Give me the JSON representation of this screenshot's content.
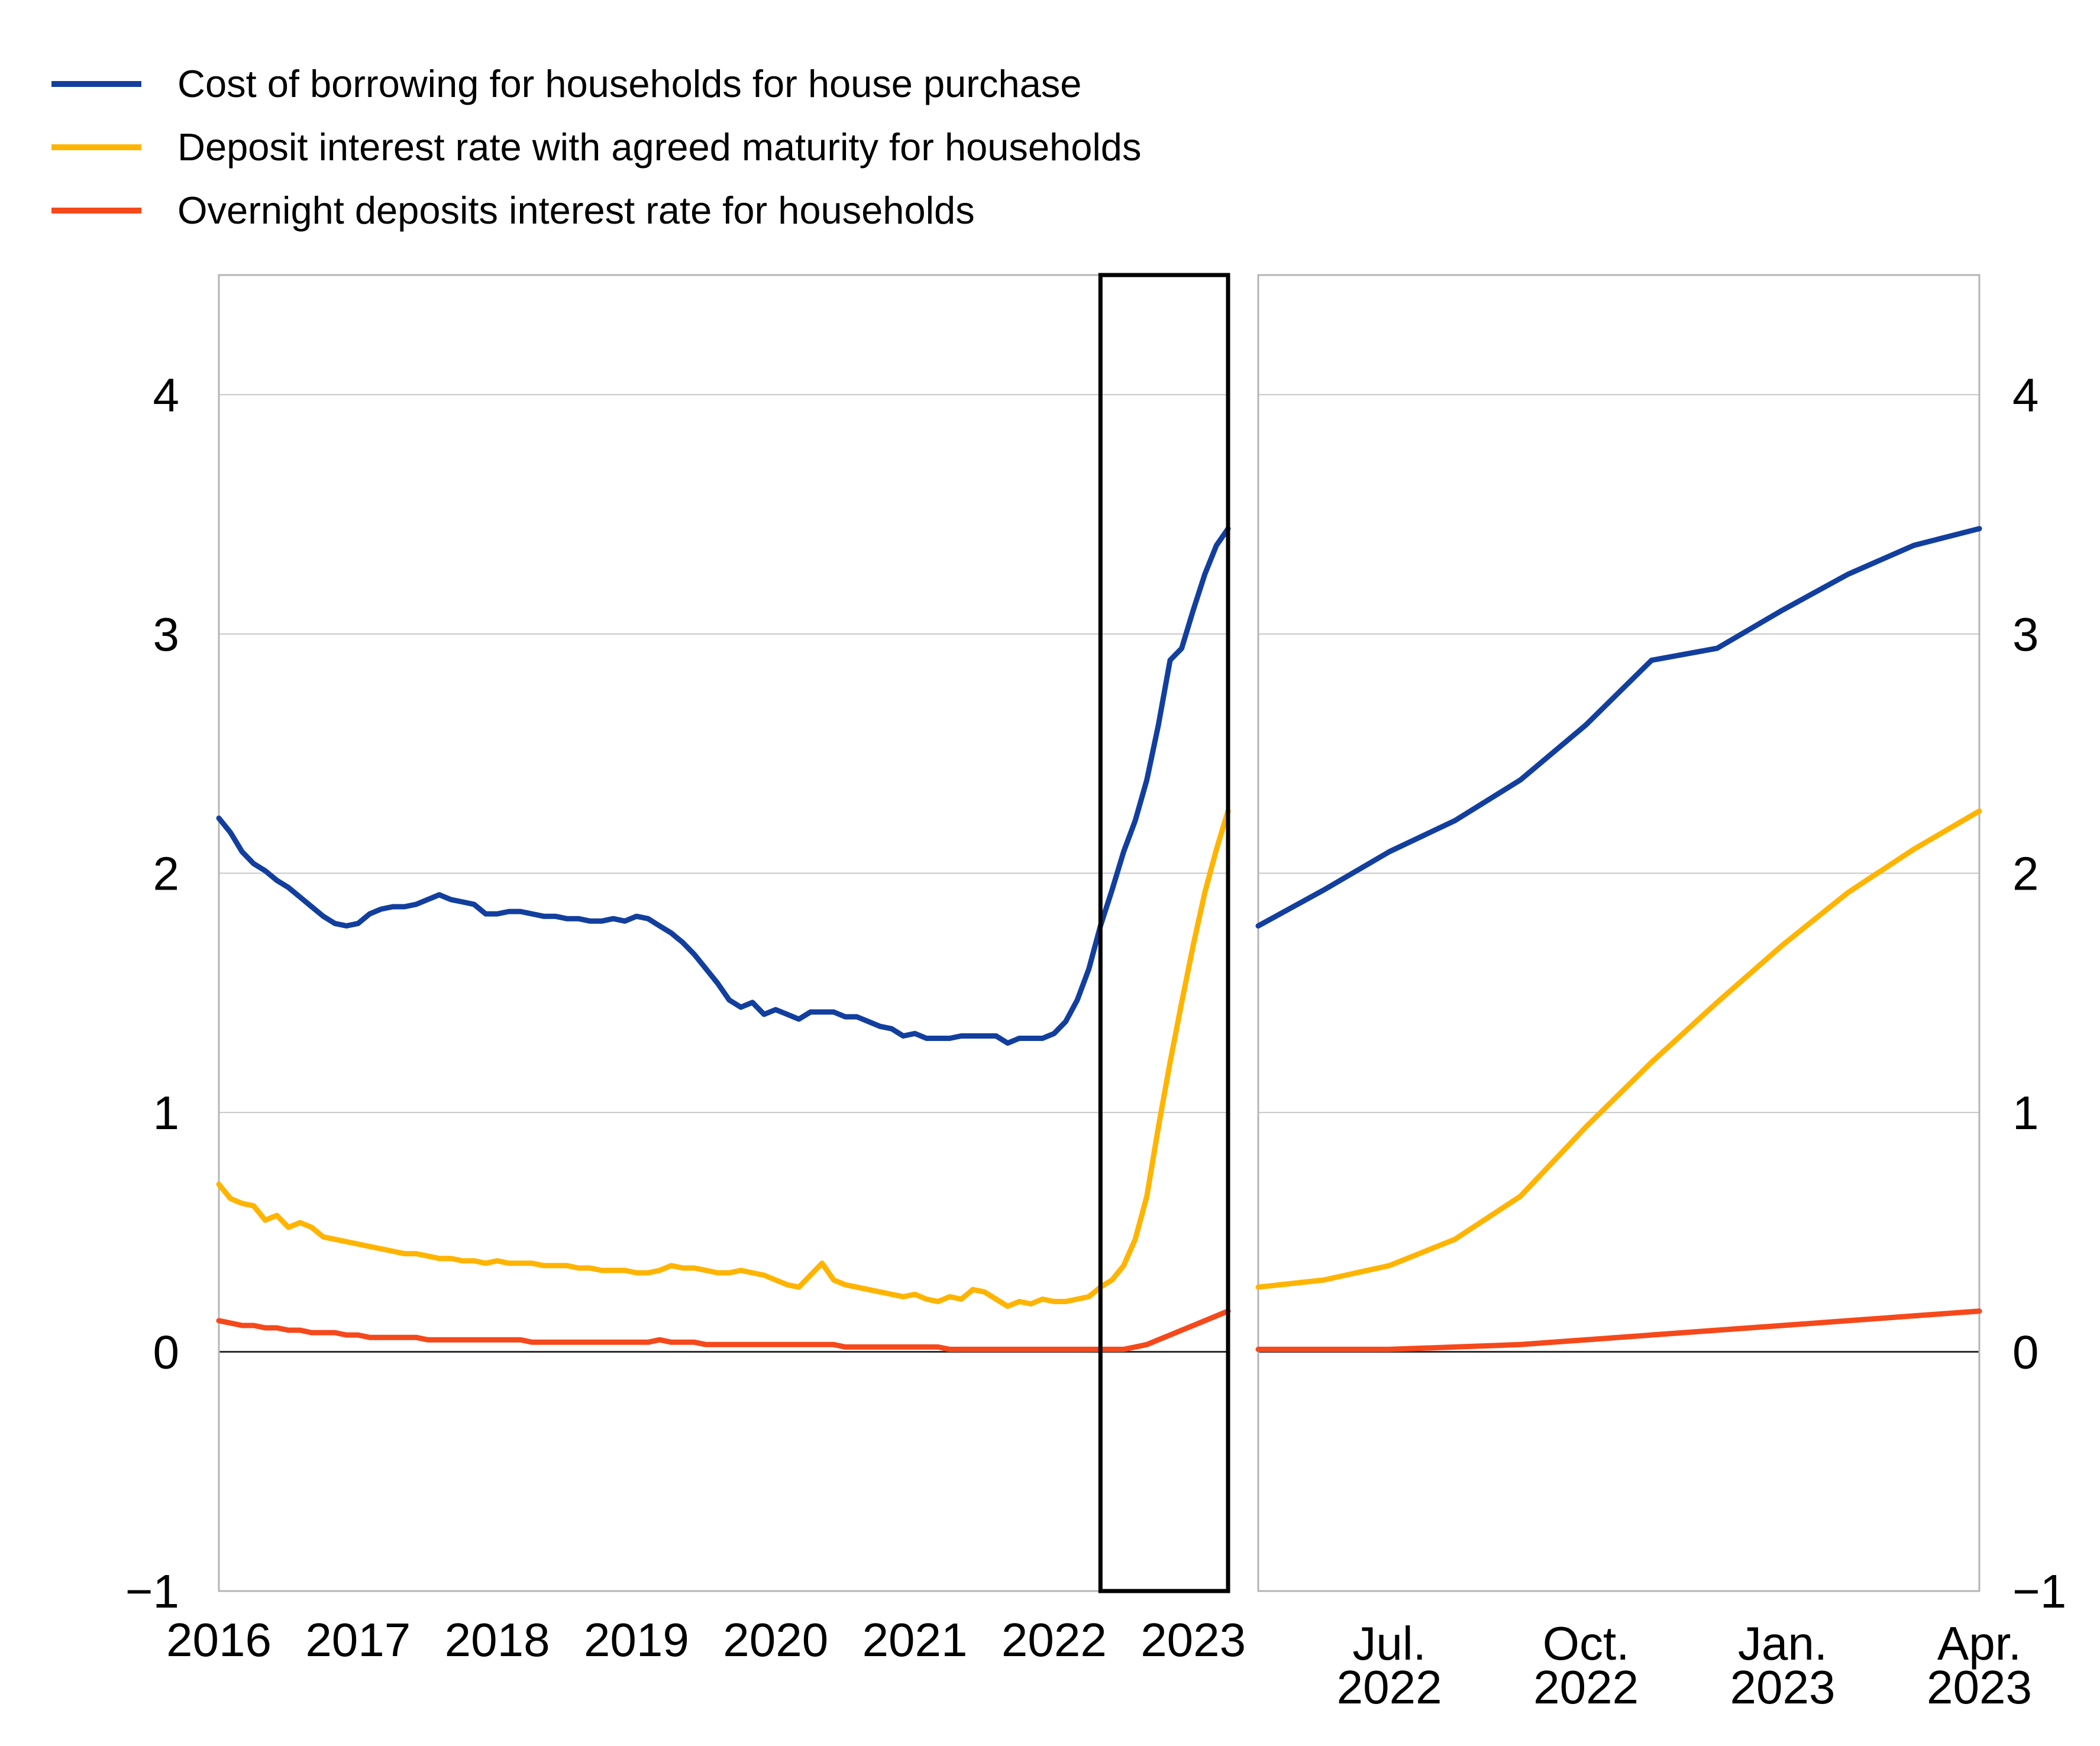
{
  "legend": {
    "items": [
      {
        "label": "Cost of borrowing for households for house purchase",
        "color": "#123F9E"
      },
      {
        "label": "Deposit interest rate with agreed maturity for households",
        "color": "#FFB400"
      },
      {
        "label": "Overnight deposits interest rate for households",
        "color": "#F5491B"
      }
    ]
  },
  "chart_data": {
    "type": "line",
    "title": "",
    "x_frequency": "monthly",
    "x_start": "2016-01",
    "x_end": "2023-04",
    "ylim": [
      -1,
      4.5
    ],
    "y_ticks_values": [
      4,
      3,
      2,
      1,
      0,
      -1
    ],
    "y_ticks_labels": [
      "4",
      "3",
      "2",
      "1",
      "0",
      "−1"
    ],
    "grid": "horizontal",
    "legend_position": "top-left",
    "panels": {
      "left": {
        "x_tick_labels": [
          "2016",
          "2017",
          "2018",
          "2019",
          "2020",
          "2021",
          "2022",
          "2023"
        ],
        "x_tick_month_indices": [
          0,
          12,
          24,
          36,
          48,
          60,
          72,
          84
        ]
      },
      "right": {
        "zoom_start_index": 76,
        "x_tick_labels": [
          [
            "Jul.",
            "2022"
          ],
          [
            "Oct.",
            "2022"
          ],
          [
            "Jan.",
            "2023"
          ],
          [
            "Apr.",
            "2023"
          ]
        ],
        "x_tick_month_indices": [
          78,
          81,
          84,
          87
        ]
      }
    },
    "highlight_box": {
      "from_month_index": 76,
      "to_month_index": 87
    },
    "series": [
      {
        "name": "Cost of borrowing for households for house purchase",
        "color": "#123F9E",
        "values": [
          2.23,
          2.17,
          2.09,
          2.04,
          2.01,
          1.97,
          1.94,
          1.9,
          1.86,
          1.82,
          1.79,
          1.78,
          1.79,
          1.83,
          1.85,
          1.86,
          1.86,
          1.87,
          1.89,
          1.91,
          1.89,
          1.88,
          1.87,
          1.83,
          1.83,
          1.84,
          1.84,
          1.83,
          1.82,
          1.82,
          1.81,
          1.81,
          1.8,
          1.8,
          1.81,
          1.8,
          1.82,
          1.81,
          1.78,
          1.75,
          1.71,
          1.66,
          1.6,
          1.54,
          1.47,
          1.44,
          1.46,
          1.41,
          1.43,
          1.41,
          1.39,
          1.42,
          1.42,
          1.42,
          1.4,
          1.4,
          1.38,
          1.36,
          1.35,
          1.32,
          1.33,
          1.31,
          1.31,
          1.31,
          1.32,
          1.32,
          1.32,
          1.32,
          1.29,
          1.31,
          1.31,
          1.31,
          1.33,
          1.38,
          1.47,
          1.6,
          1.78,
          1.93,
          2.09,
          2.22,
          2.39,
          2.62,
          2.89,
          2.94,
          3.1,
          3.25,
          3.37,
          3.44
        ]
      },
      {
        "name": "Deposit interest rate with agreed maturity for households",
        "color": "#FFB400",
        "values": [
          0.7,
          0.64,
          0.62,
          0.61,
          0.55,
          0.57,
          0.52,
          0.54,
          0.52,
          0.48,
          0.47,
          0.46,
          0.45,
          0.44,
          0.43,
          0.42,
          0.41,
          0.41,
          0.4,
          0.39,
          0.39,
          0.38,
          0.38,
          0.37,
          0.38,
          0.37,
          0.37,
          0.37,
          0.36,
          0.36,
          0.36,
          0.35,
          0.35,
          0.34,
          0.34,
          0.34,
          0.33,
          0.33,
          0.34,
          0.36,
          0.35,
          0.35,
          0.34,
          0.33,
          0.33,
          0.34,
          0.33,
          0.32,
          0.3,
          0.28,
          0.27,
          0.32,
          0.37,
          0.3,
          0.28,
          0.27,
          0.26,
          0.25,
          0.24,
          0.23,
          0.24,
          0.22,
          0.21,
          0.23,
          0.22,
          0.26,
          0.25,
          0.22,
          0.19,
          0.21,
          0.2,
          0.22,
          0.21,
          0.21,
          0.22,
          0.23,
          0.27,
          0.3,
          0.36,
          0.47,
          0.65,
          0.94,
          1.21,
          1.46,
          1.7,
          1.92,
          2.1,
          2.26
        ]
      },
      {
        "name": "Overnight deposits interest rate for households",
        "color": "#F5491B",
        "values": [
          0.13,
          0.12,
          0.11,
          0.11,
          0.1,
          0.1,
          0.09,
          0.09,
          0.08,
          0.08,
          0.08,
          0.07,
          0.07,
          0.06,
          0.06,
          0.06,
          0.06,
          0.06,
          0.05,
          0.05,
          0.05,
          0.05,
          0.05,
          0.05,
          0.05,
          0.05,
          0.05,
          0.04,
          0.04,
          0.04,
          0.04,
          0.04,
          0.04,
          0.04,
          0.04,
          0.04,
          0.04,
          0.04,
          0.05,
          0.04,
          0.04,
          0.04,
          0.03,
          0.03,
          0.03,
          0.03,
          0.03,
          0.03,
          0.03,
          0.03,
          0.03,
          0.03,
          0.03,
          0.03,
          0.02,
          0.02,
          0.02,
          0.02,
          0.02,
          0.02,
          0.02,
          0.02,
          0.02,
          0.01,
          0.01,
          0.01,
          0.01,
          0.01,
          0.01,
          0.01,
          0.01,
          0.01,
          0.01,
          0.01,
          0.01,
          0.01,
          0.01,
          0.01,
          0.01,
          0.02,
          0.03,
          0.05,
          0.07,
          0.09,
          0.11,
          0.13,
          0.15,
          0.17
        ]
      }
    ]
  }
}
